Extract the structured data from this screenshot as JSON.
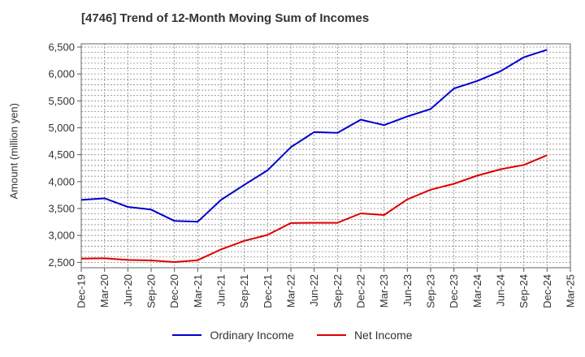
{
  "chart_data": {
    "type": "line",
    "title": "[4746]  Trend of 12-Month Moving Sum of Incomes",
    "xlabel": "",
    "ylabel": "Amount (million yen)",
    "ylim": [
      2400,
      6560
    ],
    "yticks": [
      2500,
      3000,
      3500,
      4000,
      4500,
      5000,
      5500,
      6000,
      6500
    ],
    "ytick_labels": [
      "2,500",
      "3,000",
      "3,500",
      "4,000",
      "4,500",
      "5,000",
      "5,500",
      "6,000",
      "6,500"
    ],
    "categories": [
      "Dec-19",
      "Mar-20",
      "Jun-20",
      "Sep-20",
      "Dec-20",
      "Mar-21",
      "Jun-21",
      "Sep-21",
      "Dec-21",
      "Mar-22",
      "Jun-22",
      "Sep-22",
      "Dec-22",
      "Mar-23",
      "Jun-23",
      "Sep-23",
      "Dec-23",
      "Mar-24",
      "Jun-24",
      "Sep-24",
      "Dec-24",
      "Mar-25"
    ],
    "grid": true,
    "legend_position": "bottom",
    "series": [
      {
        "name": "Ordinary Income",
        "color": "#0000cc",
        "values": [
          3660,
          3690,
          3530,
          3480,
          3270,
          3255,
          3660,
          3940,
          4210,
          4640,
          4920,
          4905,
          5150,
          5050,
          5210,
          5350,
          5730,
          5870,
          6050,
          6310,
          6450,
          null
        ]
      },
      {
        "name": "Net Income",
        "color": "#dd0000",
        "values": [
          2570,
          2575,
          2545,
          2535,
          2505,
          2540,
          2740,
          2900,
          3010,
          3230,
          3235,
          3235,
          3410,
          3380,
          3670,
          3850,
          3960,
          4110,
          4230,
          4310,
          4490,
          null
        ]
      }
    ]
  }
}
